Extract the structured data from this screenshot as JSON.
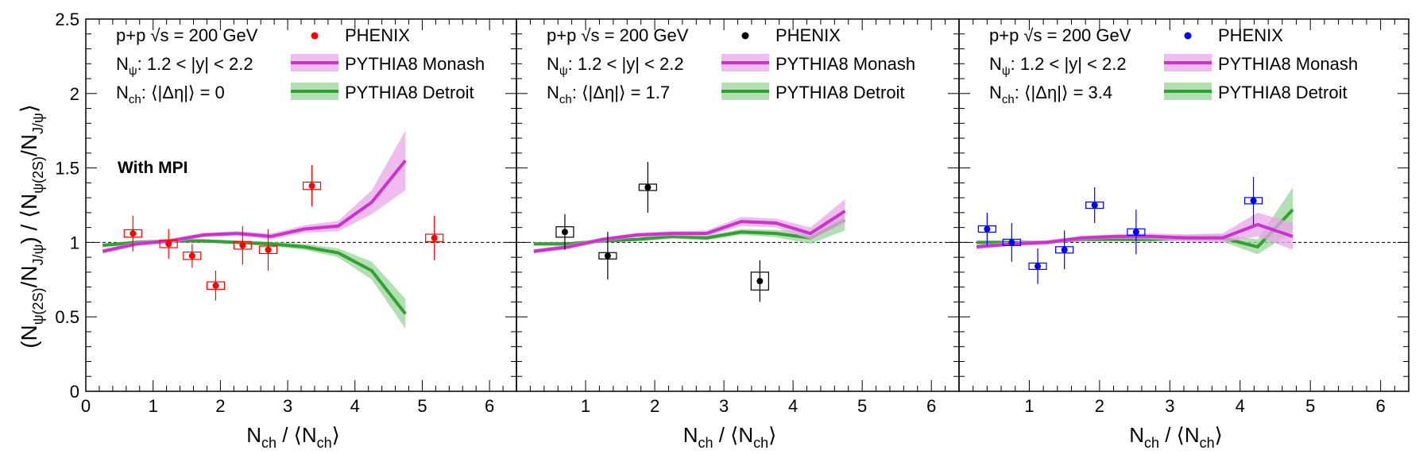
{
  "chart_data": {
    "type": "scatter",
    "ylabel": "(N_ψ(2S)/N_J/ψ) / ⟨N_ψ(2S)/N_J/ψ⟩",
    "ylabel_parts": {
      "open": "(N",
      "sub1": "ψ(2S)",
      "slash": "/N",
      "sub2": "J/ψ",
      "close": ") / ⟨N",
      "sub3": "ψ(2S)",
      "slash2": "/N",
      "sub4": "J/ψ",
      "end": "⟩"
    },
    "xlabel_parts": {
      "a": "N",
      "sub_a": "ch",
      "mid": " / ⟨N",
      "sub_b": "ch",
      "end": "⟩"
    },
    "ylim": [
      0,
      2.5
    ],
    "xlim": [
      0,
      6.4
    ],
    "yticks": [
      "0",
      "0.5",
      "1",
      "1.5",
      "2",
      "2.5"
    ],
    "xticks_panel1": [
      "0",
      "1",
      "2",
      "3",
      "4",
      "5",
      "6"
    ],
    "xticks_other": [
      "1",
      "2",
      "3",
      "4",
      "5",
      "6"
    ],
    "reference_line": 1,
    "annotation": "With MPI",
    "panels": [
      {
        "system": "p+p",
        "energy": "√s = 200 GeV",
        "rapidity": "1.2 < |y| < 2.2",
        "rapidity_sym": "N",
        "rapidity_sub": "ψ",
        "deta_sym": "N",
        "deta_sub": "ch",
        "deta_text": ": ⟨|Δη|⟩ = 0",
        "legend": [
          "PHENIX",
          "PYTHIA8 Monash",
          "PYTHIA8 Detroit"
        ],
        "point_color": "#ff0000",
        "phenix": [
          {
            "x": 0.7,
            "y": 1.06,
            "err": 0.12,
            "sys": 0.025
          },
          {
            "x": 1.23,
            "y": 0.99,
            "err": 0.1,
            "sys": 0.025
          },
          {
            "x": 1.58,
            "y": 0.91,
            "err": 0.08,
            "sys": 0.025
          },
          {
            "x": 1.93,
            "y": 0.71,
            "err": 0.1,
            "sys": 0.025
          },
          {
            "x": 2.33,
            "y": 0.98,
            "err": 0.13,
            "sys": 0.025
          },
          {
            "x": 2.71,
            "y": 0.95,
            "err": 0.14,
            "sys": 0.025
          },
          {
            "x": 3.36,
            "y": 1.38,
            "err": 0.14,
            "sys": 0.025
          },
          {
            "x": 5.18,
            "y": 1.03,
            "err": 0.15,
            "sys": 0.025
          }
        ],
        "monash": [
          {
            "x": 0.25,
            "y": 0.94,
            "e": 0.015
          },
          {
            "x": 0.75,
            "y": 0.99,
            "e": 0.015
          },
          {
            "x": 1.25,
            "y": 1.01,
            "e": 0.015
          },
          {
            "x": 1.75,
            "y": 1.05,
            "e": 0.015
          },
          {
            "x": 2.25,
            "y": 1.06,
            "e": 0.015
          },
          {
            "x": 2.75,
            "y": 1.04,
            "e": 0.02
          },
          {
            "x": 3.25,
            "y": 1.09,
            "e": 0.025
          },
          {
            "x": 3.75,
            "y": 1.11,
            "e": 0.035
          },
          {
            "x": 4.25,
            "y": 1.27,
            "e": 0.08
          },
          {
            "x": 4.75,
            "y": 1.55,
            "e": 0.2
          }
        ],
        "detroit": [
          {
            "x": 0.25,
            "y": 0.98,
            "e": 0.012
          },
          {
            "x": 0.75,
            "y": 1.0,
            "e": 0.012
          },
          {
            "x": 1.25,
            "y": 1.01,
            "e": 0.012
          },
          {
            "x": 1.75,
            "y": 1.01,
            "e": 0.012
          },
          {
            "x": 2.25,
            "y": 1.0,
            "e": 0.012
          },
          {
            "x": 2.75,
            "y": 0.99,
            "e": 0.015
          },
          {
            "x": 3.25,
            "y": 0.97,
            "e": 0.02
          },
          {
            "x": 3.75,
            "y": 0.93,
            "e": 0.03
          },
          {
            "x": 4.25,
            "y": 0.81,
            "e": 0.06
          },
          {
            "x": 4.75,
            "y": 0.52,
            "e": 0.1
          }
        ]
      },
      {
        "system": "p+p",
        "energy": "√s = 200 GeV",
        "rapidity": "1.2 < |y| < 2.2",
        "rapidity_sym": "N",
        "rapidity_sub": "ψ",
        "deta_sym": "N",
        "deta_sub": "ch",
        "deta_text": ": ⟨|Δη|⟩ = 1.7",
        "legend": [
          "PHENIX",
          "PYTHIA8 Monash",
          "PYTHIA8 Detroit"
        ],
        "point_color": "#000000",
        "phenix": [
          {
            "x": 0.7,
            "y": 1.07,
            "err": 0.12,
            "sys": 0.035
          },
          {
            "x": 1.32,
            "y": 0.91,
            "err": 0.16,
            "sys": 0.02
          },
          {
            "x": 1.9,
            "y": 1.37,
            "err": 0.17,
            "sys": 0.02
          },
          {
            "x": 3.52,
            "y": 0.74,
            "err": 0.14,
            "sys": 0.06
          }
        ],
        "monash": [
          {
            "x": 0.25,
            "y": 0.94,
            "e": 0.015
          },
          {
            "x": 0.75,
            "y": 0.97,
            "e": 0.015
          },
          {
            "x": 1.25,
            "y": 1.02,
            "e": 0.015
          },
          {
            "x": 1.75,
            "y": 1.05,
            "e": 0.015
          },
          {
            "x": 2.25,
            "y": 1.06,
            "e": 0.015
          },
          {
            "x": 2.75,
            "y": 1.06,
            "e": 0.02
          },
          {
            "x": 3.25,
            "y": 1.14,
            "e": 0.03
          },
          {
            "x": 3.75,
            "y": 1.13,
            "e": 0.03
          },
          {
            "x": 4.25,
            "y": 1.06,
            "e": 0.04
          },
          {
            "x": 4.75,
            "y": 1.21,
            "e": 0.08
          }
        ],
        "detroit": [
          {
            "x": 0.25,
            "y": 0.99,
            "e": 0.012
          },
          {
            "x": 0.75,
            "y": 0.99,
            "e": 0.012
          },
          {
            "x": 1.25,
            "y": 1.01,
            "e": 0.012
          },
          {
            "x": 1.75,
            "y": 1.02,
            "e": 0.012
          },
          {
            "x": 2.25,
            "y": 1.04,
            "e": 0.015
          },
          {
            "x": 2.75,
            "y": 1.03,
            "e": 0.015
          },
          {
            "x": 3.25,
            "y": 1.07,
            "e": 0.02
          },
          {
            "x": 3.75,
            "y": 1.06,
            "e": 0.025
          },
          {
            "x": 4.25,
            "y": 1.03,
            "e": 0.04
          },
          {
            "x": 4.75,
            "y": 1.15,
            "e": 0.07
          }
        ]
      },
      {
        "system": "p+p",
        "energy": "√s = 200 GeV",
        "rapidity": "1.2 < |y| < 2.2",
        "rapidity_sym": "N",
        "rapidity_sub": "ψ",
        "deta_sym": "N",
        "deta_sub": "ch",
        "deta_text": ": ⟨|Δη|⟩ = 3.4",
        "legend": [
          "PHENIX",
          "PYTHIA8 Monash",
          "PYTHIA8 Detroit"
        ],
        "point_color": "#0000ff",
        "phenix": [
          {
            "x": 0.4,
            "y": 1.09,
            "err": 0.11,
            "sys": 0.02
          },
          {
            "x": 0.75,
            "y": 1.0,
            "err": 0.13,
            "sys": 0.02
          },
          {
            "x": 1.12,
            "y": 0.84,
            "err": 0.12,
            "sys": 0.02
          },
          {
            "x": 1.5,
            "y": 0.95,
            "err": 0.13,
            "sys": 0.02
          },
          {
            "x": 1.93,
            "y": 1.25,
            "err": 0.12,
            "sys": 0.01
          },
          {
            "x": 2.52,
            "y": 1.07,
            "err": 0.15,
            "sys": 0.01
          },
          {
            "x": 4.19,
            "y": 1.28,
            "err": 0.16,
            "sys": 0.02
          }
        ],
        "monash": [
          {
            "x": 0.25,
            "y": 0.97,
            "e": 0.015
          },
          {
            "x": 0.75,
            "y": 0.99,
            "e": 0.015
          },
          {
            "x": 1.25,
            "y": 1.0,
            "e": 0.015
          },
          {
            "x": 1.75,
            "y": 1.03,
            "e": 0.015
          },
          {
            "x": 2.25,
            "y": 1.04,
            "e": 0.015
          },
          {
            "x": 2.75,
            "y": 1.04,
            "e": 0.02
          },
          {
            "x": 3.25,
            "y": 1.03,
            "e": 0.025
          },
          {
            "x": 3.75,
            "y": 1.03,
            "e": 0.03
          },
          {
            "x": 4.25,
            "y": 1.12,
            "e": 0.08
          },
          {
            "x": 4.75,
            "y": 1.04,
            "e": 0.09
          }
        ],
        "detroit": [
          {
            "x": 0.25,
            "y": 1.0,
            "e": 0.012
          },
          {
            "x": 0.75,
            "y": 1.0,
            "e": 0.012
          },
          {
            "x": 1.25,
            "y": 1.0,
            "e": 0.012
          },
          {
            "x": 1.75,
            "y": 1.02,
            "e": 0.012
          },
          {
            "x": 2.25,
            "y": 1.02,
            "e": 0.012
          },
          {
            "x": 2.75,
            "y": 1.02,
            "e": 0.015
          },
          {
            "x": 3.25,
            "y": 1.03,
            "e": 0.02
          },
          {
            "x": 3.75,
            "y": 1.03,
            "e": 0.025
          },
          {
            "x": 4.25,
            "y": 0.97,
            "e": 0.05
          },
          {
            "x": 4.75,
            "y": 1.22,
            "e": 0.15
          }
        ]
      }
    ]
  },
  "colors": {
    "monash_line": "#cc33cc",
    "monash_band": "#e8a6ea",
    "detroit_line": "#33a033",
    "detroit_band": "#99d699",
    "axis": "#000000"
  }
}
